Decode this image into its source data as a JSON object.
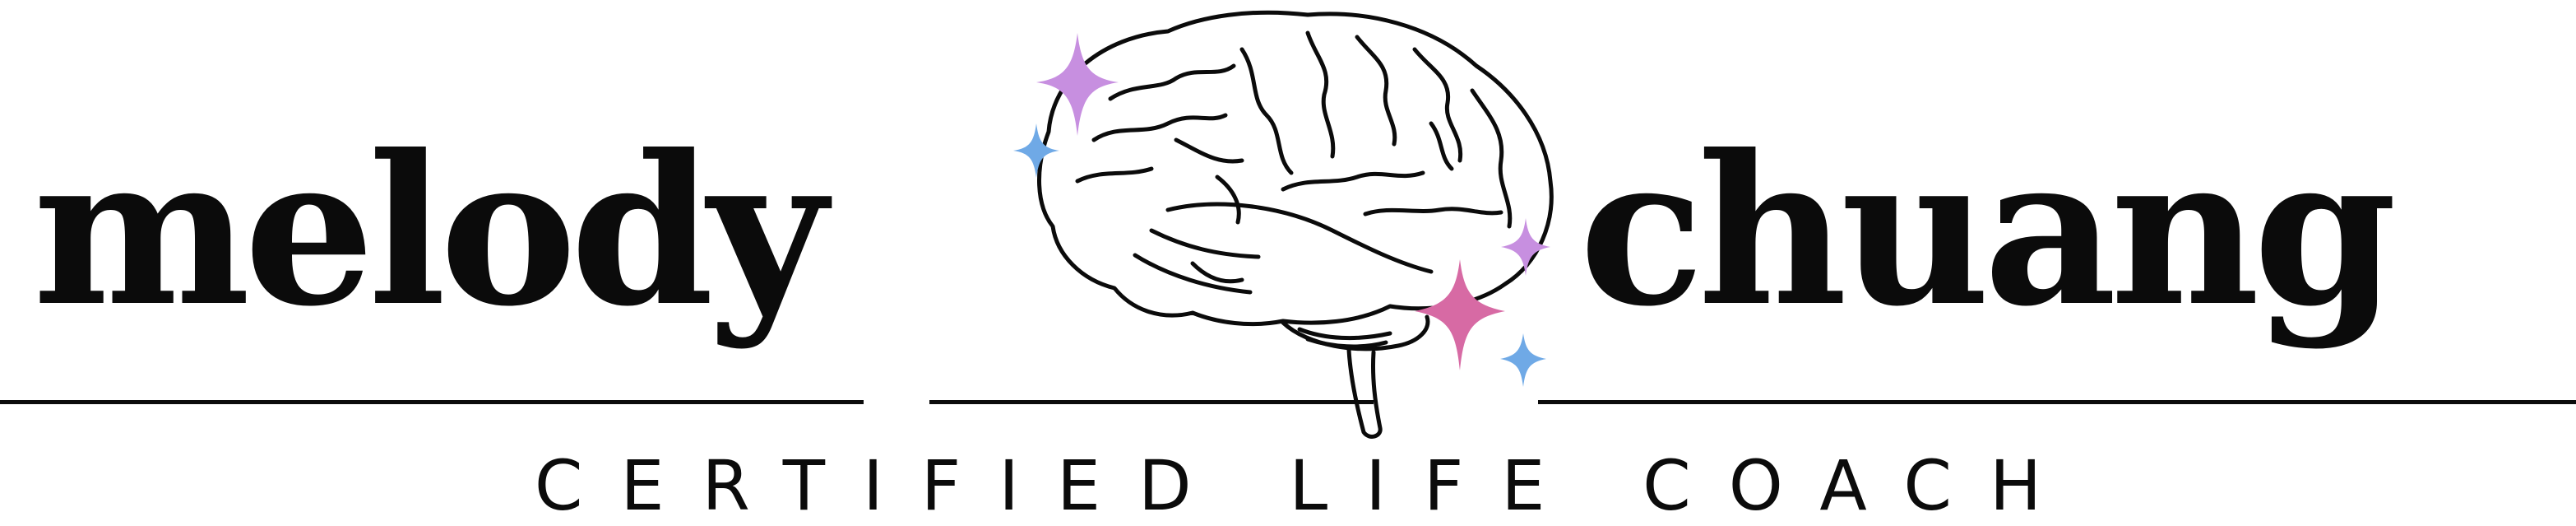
{
  "logo": {
    "first_name": "melody",
    "last_name": "chuang",
    "tagline": "CERTIFIED LIFE COACH",
    "icon": "brain-icon",
    "sparkle_icon": "sparkle-icon"
  },
  "colors": {
    "ink": "#0b0b0b",
    "lavender": "#c78fe0",
    "pink": "#d76aa4",
    "blue": "#6fa9e6"
  }
}
